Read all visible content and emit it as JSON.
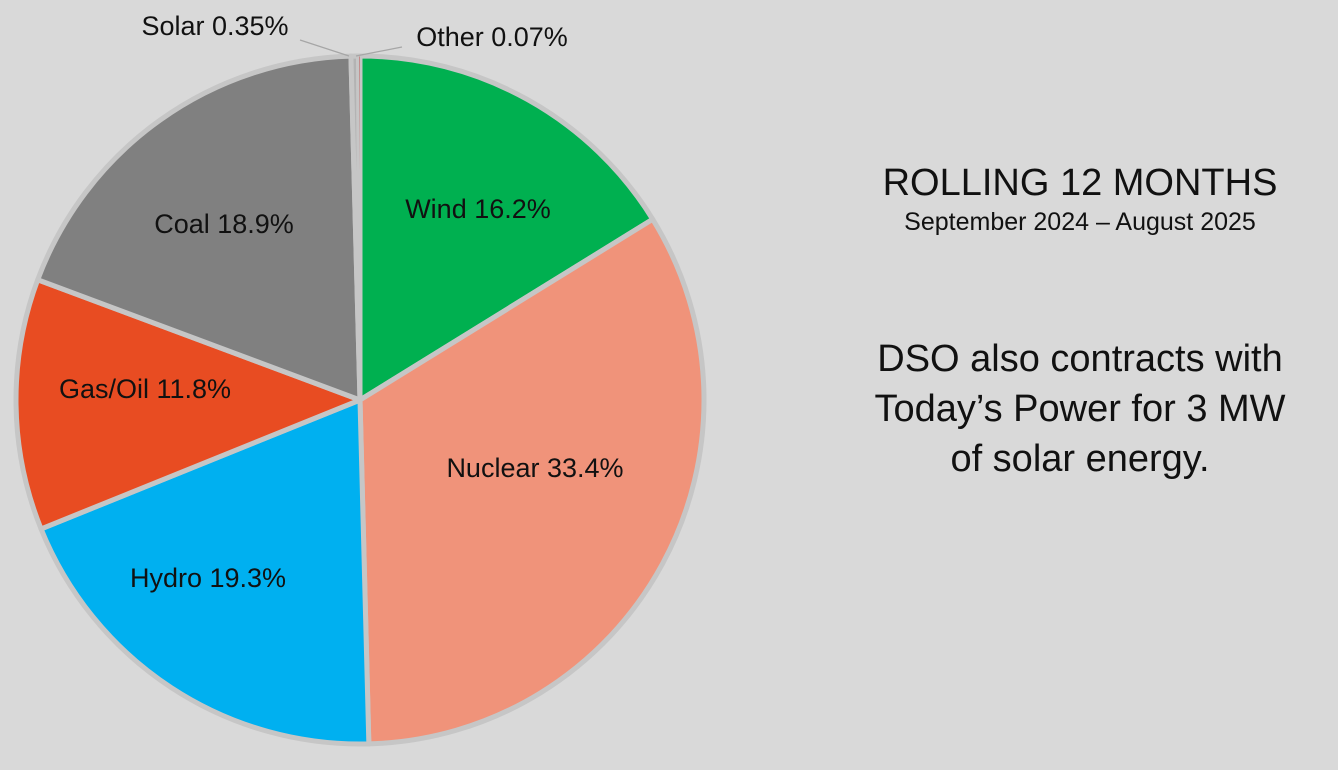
{
  "chart_data": {
    "type": "pie",
    "unit": "%",
    "slices": [
      {
        "name": "Wind",
        "value": 16.2,
        "label": "Wind 16.2%",
        "color": "#00b050"
      },
      {
        "name": "Nuclear",
        "value": 33.4,
        "label": "Nuclear 33.4%",
        "color": "#f0937a"
      },
      {
        "name": "Hydro",
        "value": 19.3,
        "label": "Hydro 19.3%",
        "color": "#00b0f0"
      },
      {
        "name": "Gas/Oil",
        "value": 11.8,
        "label": "Gas/Oil 11.8%",
        "color": "#e84c22"
      },
      {
        "name": "Coal",
        "value": 18.9,
        "label": "Coal 18.9%",
        "color": "#808080"
      },
      {
        "name": "Solar",
        "value": 0.35,
        "label": "Solar 0.35%",
        "color": "#b3b3b3"
      },
      {
        "name": "Other",
        "value": 0.07,
        "label": "Other 0.07%",
        "color": "#c0504d"
      }
    ],
    "separator_color": "#c6c6c6"
  },
  "panel": {
    "title": "ROLLING 12 MONTHS",
    "subtitle": "September 2024 – August 2025",
    "note_lines": [
      "DSO also contracts with",
      "Today’s Power for 3 MW",
      "of solar energy."
    ]
  }
}
